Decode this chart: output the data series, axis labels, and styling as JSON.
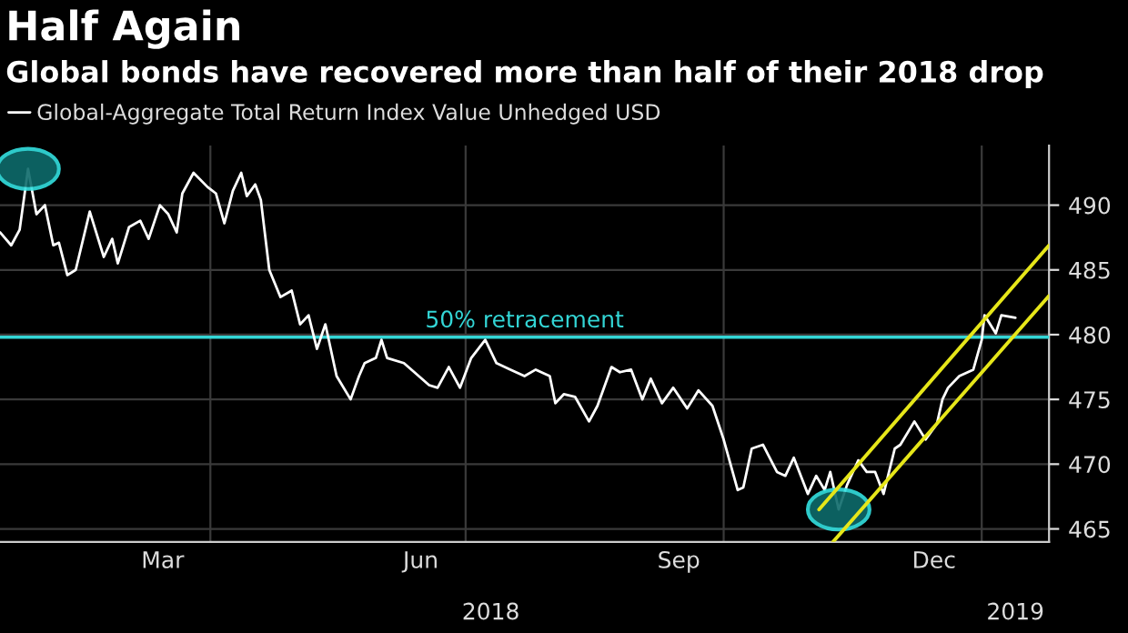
{
  "chart_data": {
    "type": "line",
    "title": "Half Again",
    "subtitle": "Global bonds have recovered more than half of their 2018 drop",
    "x": [
      "2018-01-16",
      "2018-01-20",
      "2018-01-23",
      "2018-01-26",
      "2018-01-29",
      "2018-02-01",
      "2018-02-04",
      "2018-02-06",
      "2018-02-09",
      "2018-02-12",
      "2018-02-17",
      "2018-02-22",
      "2018-02-25",
      "2018-02-27",
      "2018-03-03",
      "2018-03-07",
      "2018-03-10",
      "2018-03-14",
      "2018-03-17",
      "2018-03-20",
      "2018-03-22",
      "2018-03-26",
      "2018-03-31",
      "2018-04-03",
      "2018-04-06",
      "2018-04-09",
      "2018-04-12",
      "2018-04-14",
      "2018-04-17",
      "2018-04-19",
      "2018-04-22",
      "2018-04-26",
      "2018-04-30",
      "2018-05-03",
      "2018-05-06",
      "2018-05-09",
      "2018-05-12",
      "2018-05-16",
      "2018-05-21",
      "2018-05-24",
      "2018-05-26",
      "2018-05-30",
      "2018-06-01",
      "2018-06-03",
      "2018-06-09",
      "2018-06-18",
      "2018-06-21",
      "2018-06-25",
      "2018-06-29",
      "2018-07-03",
      "2018-07-08",
      "2018-07-12",
      "2018-07-17",
      "2018-07-22",
      "2018-07-26",
      "2018-07-31",
      "2018-08-02",
      "2018-08-05",
      "2018-08-09",
      "2018-08-14",
      "2018-08-17",
      "2018-08-22",
      "2018-08-25",
      "2018-08-29",
      "2018-09-02",
      "2018-09-05",
      "2018-09-09",
      "2018-09-13",
      "2018-09-18",
      "2018-09-22",
      "2018-09-27",
      "2018-10-01",
      "2018-10-06",
      "2018-10-08",
      "2018-10-11",
      "2018-10-15",
      "2018-10-20",
      "2018-10-23",
      "2018-10-26",
      "2018-10-31",
      "2018-11-03",
      "2018-11-06",
      "2018-11-08",
      "2018-11-11",
      "2018-11-14",
      "2018-11-18",
      "2018-11-21",
      "2018-11-24",
      "2018-11-27",
      "2018-12-01",
      "2018-12-03",
      "2018-12-08",
      "2018-12-12",
      "2018-12-16",
      "2018-12-18",
      "2018-12-20",
      "2018-12-24",
      "2018-12-29",
      "2019-01-01",
      "2019-01-02",
      "2019-01-04",
      "2019-01-06",
      "2019-01-08",
      "2019-01-13"
    ],
    "series": [
      {
        "name": "Global-Aggregate Total Return Index Value Unhedged USD",
        "color": "#ffffff",
        "values": [
          487.9,
          486.9,
          488.1,
          492.8,
          489.3,
          490.0,
          486.9,
          487.1,
          484.6,
          485.0,
          489.5,
          486.0,
          487.4,
          485.5,
          488.3,
          488.8,
          487.4,
          490.0,
          489.3,
          487.9,
          490.9,
          492.5,
          491.4,
          490.9,
          488.6,
          491.1,
          492.5,
          490.7,
          491.6,
          490.4,
          485.0,
          482.9,
          483.4,
          480.8,
          481.5,
          478.9,
          480.8,
          476.8,
          475.0,
          476.8,
          477.8,
          478.2,
          479.6,
          478.2,
          477.8,
          476.1,
          475.9,
          477.5,
          475.9,
          478.2,
          479.6,
          477.8,
          477.3,
          476.8,
          477.3,
          476.8,
          474.7,
          475.4,
          475.2,
          473.3,
          474.5,
          477.5,
          477.1,
          477.3,
          475.0,
          476.6,
          474.7,
          475.9,
          474.3,
          475.7,
          474.5,
          471.9,
          468.0,
          468.2,
          471.2,
          471.5,
          469.4,
          469.1,
          470.5,
          467.7,
          469.1,
          468.0,
          469.4,
          466.5,
          468.4,
          470.3,
          469.4,
          469.4,
          467.7,
          471.2,
          471.5,
          473.3,
          471.9,
          473.1,
          475.0,
          475.9,
          476.8,
          477.3,
          479.6,
          481.5,
          480.8,
          480.1,
          481.5,
          481.3
        ]
      },
      {
        "type": "line",
        "color": "#e6e619",
        "x": [
          "2018-11-04",
          "2019-01-25"
        ],
        "values": [
          466.5,
          486.9
        ]
      },
      {
        "type": "line",
        "color": "#e6e619",
        "x": [
          "2018-11-09",
          "2019-01-25"
        ],
        "values": [
          464.0,
          483.0
        ]
      }
    ],
    "xlim": [
      "2018-01-16",
      "2019-01-25"
    ],
    "xticks": [
      {
        "value": "2018-03-15",
        "label": "Mar"
      },
      {
        "value": "2018-06-15",
        "label": "Jun"
      },
      {
        "value": "2018-09-15",
        "label": "Sep"
      },
      {
        "value": "2018-12-15",
        "label": "Dec"
      },
      {
        "value": "2018-04-01",
        "label": null
      },
      {
        "value": "2018-07-01",
        "label": null
      },
      {
        "value": "2018-10-01",
        "label": null
      },
      {
        "value": "2019-01-01",
        "label": null
      }
    ],
    "x2lim": [
      "2018-01-16",
      "2019-01-25"
    ],
    "x2ticks": [
      {
        "value": "2018-07-10",
        "label": "2018"
      },
      {
        "value": "2019-01-13",
        "label": "2019"
      }
    ],
    "ylim": [
      464.0,
      494.6
    ],
    "yticks": [
      465,
      470,
      475,
      480,
      485,
      490
    ],
    "ref_lines": [
      {
        "axis": "y",
        "value": 479.8,
        "label": "50% retracement",
        "color": "#33d6d6"
      }
    ],
    "grid": true,
    "legend": "top left"
  }
}
